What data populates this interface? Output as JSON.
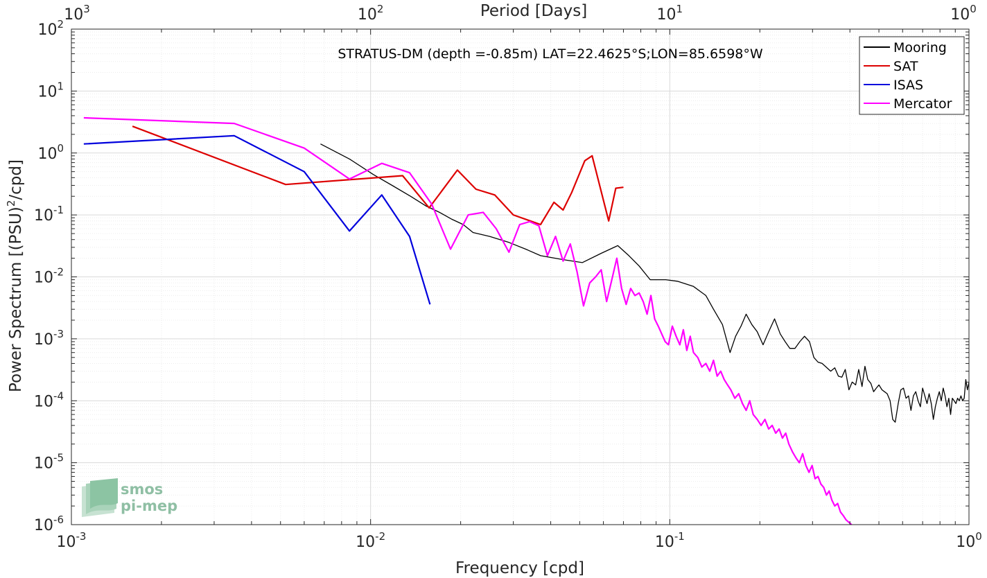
{
  "chart_data": {
    "type": "line",
    "title": "STRATUS-DM (depth =-0.85m) LAT=22.4625°S;LON=85.6598°W",
    "xlabel": "Frequency [cpd]",
    "ylabel": "Power Spectrum [(PSU)",
    "ylabel_sup": "2",
    "ylabel_tail": "/cpd]",
    "x2label": "Period [Days]",
    "x_scale": "log",
    "y_scale": "log",
    "xlim": [
      0.001,
      1
    ],
    "ylim": [
      1e-06,
      100
    ],
    "grid": true,
    "legend_position": "top-right",
    "x_ticks": [
      {
        "value": 0.001,
        "base": "10",
        "exp": "-3"
      },
      {
        "value": 0.01,
        "base": "10",
        "exp": "-2"
      },
      {
        "value": 0.1,
        "base": "10",
        "exp": "-1"
      },
      {
        "value": 1,
        "base": "10",
        "exp": "0"
      }
    ],
    "x2_ticks": [
      {
        "value": 0.001,
        "base": "10",
        "exp": "3"
      },
      {
        "value": 0.01,
        "base": "10",
        "exp": "2"
      },
      {
        "value": 0.1,
        "base": "10",
        "exp": "1"
      },
      {
        "value": 1,
        "base": "10",
        "exp": "0"
      }
    ],
    "y_ticks": [
      {
        "value": 1e-06,
        "base": "10",
        "exp": "-6"
      },
      {
        "value": 1e-05,
        "base": "10",
        "exp": "-5"
      },
      {
        "value": 0.0001,
        "base": "10",
        "exp": "-4"
      },
      {
        "value": 0.001,
        "base": "10",
        "exp": "-3"
      },
      {
        "value": 0.01,
        "base": "10",
        "exp": "-2"
      },
      {
        "value": 0.1,
        "base": "10",
        "exp": "-1"
      },
      {
        "value": 1,
        "base": "10",
        "exp": "0"
      },
      {
        "value": 10,
        "base": "10",
        "exp": "1"
      },
      {
        "value": 100,
        "base": "10",
        "exp": "2"
      }
    ],
    "series": [
      {
        "name": "Mooring",
        "color": "#000000",
        "points": [
          [
            0.0068,
            1.4
          ],
          [
            0.0085,
            0.8
          ],
          [
            0.0102,
            0.45
          ],
          [
            0.0118,
            0.3
          ],
          [
            0.0136,
            0.2
          ],
          [
            0.0153,
            0.14
          ],
          [
            0.017,
            0.11
          ],
          [
            0.0187,
            0.085
          ],
          [
            0.0204,
            0.07
          ],
          [
            0.022,
            0.052
          ],
          [
            0.025,
            0.045
          ],
          [
            0.029,
            0.036
          ],
          [
            0.033,
            0.028
          ],
          [
            0.037,
            0.022
          ],
          [
            0.044,
            0.019
          ],
          [
            0.051,
            0.017
          ],
          [
            0.059,
            0.024
          ],
          [
            0.067,
            0.032
          ],
          [
            0.073,
            0.022
          ],
          [
            0.079,
            0.015
          ],
          [
            0.086,
            0.009
          ],
          [
            0.097,
            0.009
          ],
          [
            0.106,
            0.0085
          ],
          [
            0.12,
            0.007
          ],
          [
            0.132,
            0.005
          ],
          [
            0.14,
            0.003
          ],
          [
            0.15,
            0.0017
          ],
          [
            0.159,
            0.0006
          ],
          [
            0.166,
            0.0011
          ],
          [
            0.173,
            0.0016
          ],
          [
            0.18,
            0.0025
          ],
          [
            0.188,
            0.0017
          ],
          [
            0.196,
            0.0013
          ],
          [
            0.205,
            0.0008
          ],
          [
            0.214,
            0.0013
          ],
          [
            0.224,
            0.0021
          ],
          [
            0.234,
            0.0012
          ],
          [
            0.243,
            0.0009
          ],
          [
            0.252,
            0.0007
          ],
          [
            0.262,
            0.0007
          ],
          [
            0.272,
            0.0009
          ],
          [
            0.282,
            0.0011
          ],
          [
            0.293,
            0.0009
          ],
          [
            0.303,
            0.0005
          ],
          [
            0.313,
            0.00042
          ],
          [
            0.323,
            0.0004
          ],
          [
            0.333,
            0.00035
          ],
          [
            0.345,
            0.0003
          ],
          [
            0.356,
            0.00034
          ],
          [
            0.366,
            0.00025
          ],
          [
            0.376,
            0.00024
          ],
          [
            0.386,
            0.00032
          ],
          [
            0.397,
            0.00015
          ],
          [
            0.407,
            0.0002
          ],
          [
            0.418,
            0.00018
          ],
          [
            0.428,
            0.00032
          ],
          [
            0.439,
            0.00017
          ],
          [
            0.449,
            0.00036
          ],
          [
            0.459,
            0.00022
          ],
          [
            0.47,
            0.00019
          ],
          [
            0.48,
            0.00014
          ],
          [
            0.49,
            0.00016
          ],
          [
            0.5,
            0.00018
          ],
          [
            0.512,
            0.00015
          ],
          [
            0.522,
            0.00014
          ],
          [
            0.533,
            0.00013
          ],
          [
            0.545,
            0.0001
          ],
          [
            0.556,
            5e-05
          ],
          [
            0.567,
            4.5e-05
          ],
          [
            0.58,
            9e-05
          ],
          [
            0.592,
            0.00015
          ],
          [
            0.604,
            0.00016
          ],
          [
            0.616,
            0.00011
          ],
          [
            0.628,
            0.00012
          ],
          [
            0.64,
            7e-05
          ],
          [
            0.652,
            0.00012
          ],
          [
            0.664,
            0.00014
          ],
          [
            0.676,
            0.0001
          ],
          [
            0.688,
            8e-05
          ],
          [
            0.7,
            0.00016
          ],
          [
            0.712,
            0.00012
          ],
          [
            0.724,
            9e-05
          ],
          [
            0.736,
            0.00013
          ],
          [
            0.748,
            9e-05
          ],
          [
            0.76,
            5e-05
          ],
          [
            0.772,
            8e-05
          ],
          [
            0.784,
            0.00011
          ],
          [
            0.796,
            0.00014
          ],
          [
            0.808,
            0.0001
          ],
          [
            0.82,
            0.00016
          ],
          [
            0.832,
            0.00012
          ],
          [
            0.844,
            8e-05
          ],
          [
            0.856,
            0.00011
          ],
          [
            0.868,
            6e-05
          ],
          [
            0.88,
            0.00011
          ],
          [
            0.892,
            0.0001
          ],
          [
            0.904,
            9e-05
          ],
          [
            0.916,
            0.00011
          ],
          [
            0.928,
            0.0001
          ],
          [
            0.94,
            0.00012
          ],
          [
            0.952,
            0.0001
          ],
          [
            0.964,
            0.00011
          ],
          [
            0.976,
            0.00022
          ],
          [
            0.988,
            0.00015
          ],
          [
            1.0,
            0.0002
          ]
        ]
      },
      {
        "name": "SAT",
        "color": "#dd0000",
        "points": [
          [
            0.0016,
            2.7
          ],
          [
            0.0052,
            0.31
          ],
          [
            0.0128,
            0.43
          ],
          [
            0.0157,
            0.13
          ],
          [
            0.0195,
            0.53
          ],
          [
            0.0225,
            0.26
          ],
          [
            0.026,
            0.21
          ],
          [
            0.03,
            0.1
          ],
          [
            0.037,
            0.07
          ],
          [
            0.041,
            0.16
          ],
          [
            0.044,
            0.12
          ],
          [
            0.047,
            0.23
          ],
          [
            0.052,
            0.75
          ],
          [
            0.055,
            0.9
          ],
          [
            0.0625,
            0.08
          ],
          [
            0.066,
            0.27
          ],
          [
            0.07,
            0.28
          ]
        ]
      },
      {
        "name": "ISAS",
        "color": "#0000dd",
        "points": [
          [
            0.0011,
            1.4
          ],
          [
            0.0035,
            1.9
          ],
          [
            0.006,
            0.5
          ],
          [
            0.0085,
            0.055
          ],
          [
            0.0109,
            0.21
          ],
          [
            0.0135,
            0.045
          ],
          [
            0.0158,
            0.0036
          ]
        ]
      },
      {
        "name": "Mercator",
        "color": "#ff00ff",
        "points": [
          [
            0.0011,
            3.7
          ],
          [
            0.0035,
            3.0
          ],
          [
            0.006,
            1.2
          ],
          [
            0.0085,
            0.38
          ],
          [
            0.0109,
            0.68
          ],
          [
            0.0135,
            0.48
          ],
          [
            0.016,
            0.15
          ],
          [
            0.0185,
            0.028
          ],
          [
            0.0212,
            0.1
          ],
          [
            0.0238,
            0.11
          ],
          [
            0.0263,
            0.06
          ],
          [
            0.029,
            0.025
          ],
          [
            0.0315,
            0.07
          ],
          [
            0.034,
            0.078
          ],
          [
            0.0365,
            0.067
          ],
          [
            0.039,
            0.022
          ],
          [
            0.0415,
            0.045
          ],
          [
            0.044,
            0.018
          ],
          [
            0.0465,
            0.034
          ],
          [
            0.049,
            0.012
          ],
          [
            0.0515,
            0.0034
          ],
          [
            0.054,
            0.008
          ],
          [
            0.0565,
            0.01
          ],
          [
            0.059,
            0.013
          ],
          [
            0.0615,
            0.004
          ],
          [
            0.064,
            0.009
          ],
          [
            0.0665,
            0.02
          ],
          [
            0.069,
            0.0065
          ],
          [
            0.0715,
            0.0036
          ],
          [
            0.074,
            0.0065
          ],
          [
            0.0765,
            0.005
          ],
          [
            0.079,
            0.0055
          ],
          [
            0.0815,
            0.004
          ],
          [
            0.084,
            0.0025
          ],
          [
            0.0865,
            0.005
          ],
          [
            0.089,
            0.0021
          ],
          [
            0.0915,
            0.0016
          ],
          [
            0.094,
            0.0012
          ],
          [
            0.0965,
            0.0009
          ],
          [
            0.099,
            0.0008
          ],
          [
            0.102,
            0.0016
          ],
          [
            0.105,
            0.0011
          ],
          [
            0.108,
            0.0008
          ],
          [
            0.111,
            0.0014
          ],
          [
            0.114,
            0.00065
          ],
          [
            0.117,
            0.0011
          ],
          [
            0.12,
            0.0006
          ],
          [
            0.124,
            0.0005
          ],
          [
            0.128,
            0.00035
          ],
          [
            0.132,
            0.0004
          ],
          [
            0.136,
            0.0003
          ],
          [
            0.14,
            0.00045
          ],
          [
            0.144,
            0.00025
          ],
          [
            0.148,
            0.0003
          ],
          [
            0.152,
            0.00022
          ],
          [
            0.156,
            0.00018
          ],
          [
            0.16,
            0.00015
          ],
          [
            0.165,
            0.00011
          ],
          [
            0.17,
            0.00013
          ],
          [
            0.175,
            9e-05
          ],
          [
            0.18,
            7e-05
          ],
          [
            0.185,
            0.0001
          ],
          [
            0.19,
            6e-05
          ],
          [
            0.196,
            5e-05
          ],
          [
            0.202,
            4e-05
          ],
          [
            0.208,
            5e-05
          ],
          [
            0.214,
            3.5e-05
          ],
          [
            0.22,
            4e-05
          ],
          [
            0.226,
            3e-05
          ],
          [
            0.232,
            3.5e-05
          ],
          [
            0.238,
            2.5e-05
          ],
          [
            0.244,
            3e-05
          ],
          [
            0.25,
            2e-05
          ],
          [
            0.257,
            1.5e-05
          ],
          [
            0.264,
            1.2e-05
          ],
          [
            0.271,
            1e-05
          ],
          [
            0.278,
            1.4e-05
          ],
          [
            0.285,
            9e-06
          ],
          [
            0.292,
            7e-06
          ],
          [
            0.299,
            9e-06
          ],
          [
            0.306,
            5.5e-06
          ],
          [
            0.313,
            6e-06
          ],
          [
            0.32,
            4.5e-06
          ],
          [
            0.327,
            4e-06
          ],
          [
            0.334,
            3e-06
          ],
          [
            0.341,
            3.5e-06
          ],
          [
            0.348,
            2.5e-06
          ],
          [
            0.356,
            2e-06
          ],
          [
            0.364,
            2.2e-06
          ],
          [
            0.372,
            1.6e-06
          ],
          [
            0.38,
            1.4e-06
          ],
          [
            0.388,
            1.2e-06
          ],
          [
            0.396,
            1.1e-06
          ],
          [
            0.405,
            1e-06
          ]
        ]
      }
    ]
  },
  "logo": {
    "line1": "smos",
    "line2": "pi-mep"
  }
}
